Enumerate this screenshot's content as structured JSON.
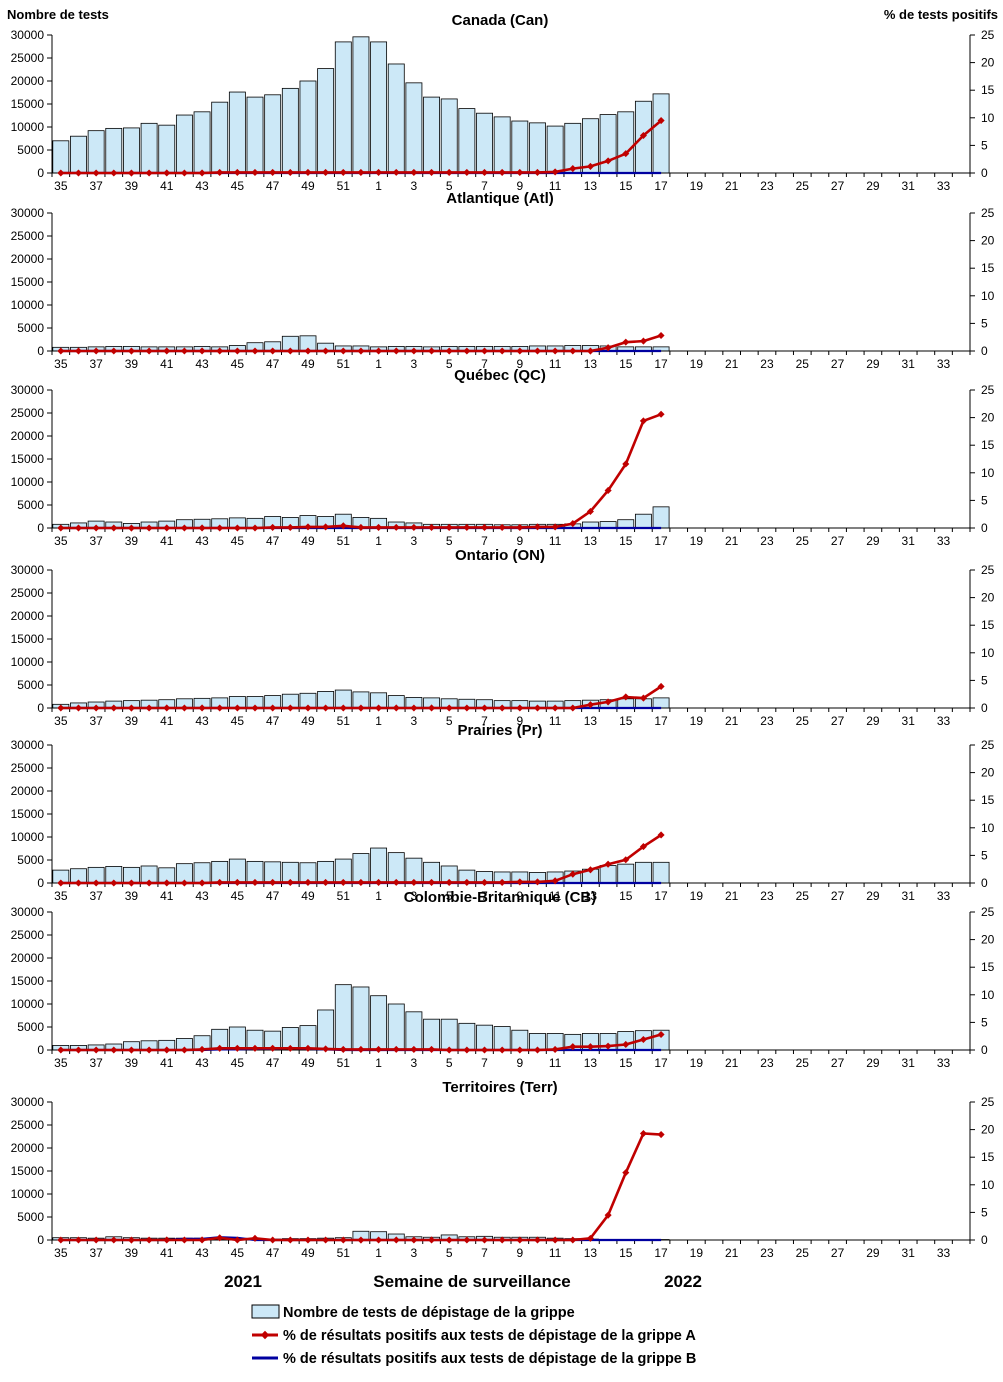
{
  "chart_data": {
    "type": "bar",
    "left_axis_title": "Nombre de tests",
    "right_axis_title": "% de tests positifs",
    "xlabel": "Semaine de surveillance",
    "year_labels": [
      "2021",
      "2022"
    ],
    "weeks": [
      35,
      36,
      37,
      38,
      39,
      40,
      41,
      42,
      43,
      44,
      45,
      46,
      47,
      48,
      49,
      50,
      51,
      52,
      1,
      2,
      3,
      4,
      5,
      6,
      7,
      8,
      9,
      10,
      11,
      12,
      13,
      14,
      15,
      16,
      17,
      18,
      19,
      20,
      21,
      22,
      23,
      24,
      25,
      26,
      27,
      28,
      29,
      30,
      31,
      32,
      33,
      34
    ],
    "x_tick_labels": [
      "35",
      "37",
      "39",
      "41",
      "43",
      "45",
      "47",
      "49",
      "51",
      "1",
      "3",
      "5",
      "7",
      "9",
      "11",
      "13",
      "15",
      "17",
      "19",
      "21",
      "23",
      "25",
      "27",
      "29",
      "31",
      "33"
    ],
    "ylim_left": [
      0,
      30000
    ],
    "yticks_left": [
      "0",
      "5000",
      "10000",
      "15000",
      "20000",
      "25000",
      "30000"
    ],
    "ylim_right": [
      0,
      25
    ],
    "yticks_right": [
      "0",
      "5",
      "10",
      "15",
      "20",
      "25"
    ],
    "legend": {
      "tests": "Nombre de tests de dépistage de la grippe",
      "flu_a": "% de résultats positifs aux tests de dépistage de la grippe A",
      "flu_b": "% de résultats positifs aux tests de dépistage de la grippe B"
    },
    "colors": {
      "bar_fill": "#cce8f7",
      "bar_stroke": "#000000",
      "flu_a": "#c00000",
      "flu_b": "#0000a0"
    },
    "panels": [
      {
        "title": "Canada (Can)",
        "tests": [
          7000,
          8000,
          9200,
          9700,
          9800,
          10800,
          10400,
          12600,
          13300,
          15400,
          17600,
          16500,
          17000,
          18400,
          20000,
          22700,
          28500,
          29600,
          28500,
          23700,
          19600,
          16500,
          16100,
          14000,
          13000,
          12200,
          11300,
          10900,
          10200,
          10800,
          11800,
          12700,
          13300,
          15600,
          17200
        ],
        "flu_a": [
          0,
          0,
          0,
          0,
          0,
          0,
          0,
          0,
          0,
          0.1,
          0.1,
          0.1,
          0.1,
          0.1,
          0.1,
          0.1,
          0.1,
          0.1,
          0.1,
          0.1,
          0.1,
          0.1,
          0.1,
          0.1,
          0.1,
          0.1,
          0.1,
          0.1,
          0.2,
          0.8,
          1.2,
          2.2,
          3.5,
          6.8,
          9.5
        ],
        "flu_b": [
          0,
          0,
          0,
          0,
          0,
          0,
          0,
          0,
          0,
          0,
          0,
          0,
          0,
          0,
          0,
          0,
          0,
          0,
          0,
          0,
          0,
          0,
          0,
          0,
          0,
          0,
          0,
          0,
          0,
          0,
          0,
          0,
          0,
          0,
          0
        ]
      },
      {
        "title": "Atlantique (Atl)",
        "tests": [
          800,
          800,
          900,
          1000,
          1000,
          900,
          900,
          900,
          1000,
          900,
          1200,
          1800,
          2000,
          3200,
          3300,
          1700,
          1100,
          1100,
          900,
          1000,
          1000,
          900,
          1000,
          1000,
          1000,
          1000,
          1000,
          1100,
          1100,
          1200,
          1200,
          1100,
          900,
          900,
          900
        ],
        "flu_a": [
          0,
          0,
          0,
          0,
          0,
          0,
          0,
          0,
          0,
          0,
          0,
          0,
          0,
          0,
          0,
          0,
          0,
          0,
          0,
          0,
          0,
          0,
          0,
          0,
          0,
          0,
          0,
          0,
          0,
          0,
          0,
          0.6,
          1.6,
          1.8,
          2.8
        ],
        "flu_b": [
          0,
          0,
          0,
          0,
          0,
          0,
          0,
          0,
          0,
          0,
          0,
          0,
          0,
          0,
          0,
          0,
          0,
          0,
          0,
          0,
          0,
          0,
          0,
          0,
          0,
          0,
          0,
          0,
          0,
          0,
          0,
          0,
          0,
          0,
          0
        ]
      },
      {
        "title": "Québec (QC)",
        "tests": [
          800,
          1100,
          1500,
          1300,
          1000,
          1300,
          1500,
          1800,
          1900,
          2000,
          2200,
          2100,
          2500,
          2300,
          2700,
          2500,
          3000,
          2300,
          2100,
          1300,
          1100,
          800,
          800,
          800,
          800,
          700,
          700,
          800,
          800,
          900,
          1300,
          1400,
          1800,
          3000,
          4600
        ],
        "flu_a": [
          0,
          0,
          0,
          0,
          0,
          0,
          0,
          0,
          0,
          0,
          0,
          0,
          0.1,
          0.1,
          0.2,
          0.2,
          0.4,
          0.1,
          0.1,
          0.1,
          0.1,
          0.1,
          0.1,
          0.1,
          0.1,
          0.1,
          0.1,
          0.2,
          0.2,
          0.8,
          3.0,
          6.8,
          11.6,
          19.4,
          20.6
        ],
        "flu_b": [
          0,
          0,
          0,
          0,
          0,
          0,
          0,
          0,
          0,
          0,
          0,
          0,
          0,
          0,
          0,
          0,
          0,
          0,
          0,
          0,
          0,
          0,
          0,
          0,
          0,
          0,
          0,
          0,
          0,
          0,
          0,
          0,
          0,
          0,
          0
        ]
      },
      {
        "title": "Ontario (ON)",
        "tests": [
          800,
          1100,
          1300,
          1500,
          1600,
          1700,
          1800,
          2000,
          2100,
          2200,
          2500,
          2500,
          2700,
          3000,
          3200,
          3600,
          3900,
          3500,
          3300,
          2700,
          2300,
          2200,
          2000,
          1900,
          1800,
          1600,
          1600,
          1500,
          1500,
          1600,
          1700,
          1800,
          2000,
          2000,
          2200
        ],
        "flu_a": [
          0,
          0,
          0,
          0,
          0,
          0,
          0,
          0,
          0,
          0,
          0,
          0,
          0,
          0,
          0,
          0,
          0,
          0,
          0,
          0,
          0,
          0,
          0,
          0,
          0,
          0,
          0,
          0,
          0,
          0,
          0.6,
          1.1,
          2.0,
          1.8,
          3.9
        ],
        "flu_b": [
          0,
          0,
          0,
          0,
          0,
          0,
          0,
          0,
          0,
          0,
          0,
          0,
          0,
          0,
          0,
          0,
          0,
          0,
          0,
          0,
          0,
          0,
          0,
          0,
          0,
          0,
          0,
          0,
          0,
          0,
          0,
          0,
          0,
          0,
          0
        ]
      },
      {
        "title": "Prairies (Pr)",
        "tests": [
          2800,
          3100,
          3400,
          3600,
          3400,
          3700,
          3300,
          4200,
          4400,
          4700,
          5200,
          4700,
          4600,
          4500,
          4400,
          4700,
          5200,
          6400,
          7600,
          6600,
          5400,
          4500,
          3700,
          2800,
          2500,
          2400,
          2400,
          2300,
          2400,
          2600,
          3000,
          3800,
          4100,
          4500,
          4500
        ],
        "flu_a": [
          0,
          0,
          0,
          0,
          0,
          0,
          0,
          0,
          0,
          0.1,
          0.1,
          0.1,
          0.1,
          0.1,
          0.1,
          0.1,
          0.1,
          0.1,
          0.1,
          0.1,
          0.1,
          0.1,
          0.1,
          0.1,
          0.1,
          0.1,
          0.2,
          0.2,
          0.4,
          1.6,
          2.4,
          3.4,
          4.2,
          6.6,
          8.7
        ],
        "flu_b": [
          0,
          0,
          0,
          0,
          0,
          0,
          0,
          0,
          0,
          0,
          0,
          0,
          0,
          0,
          0,
          0,
          0,
          0,
          0,
          0,
          0,
          0,
          0,
          0,
          0,
          0,
          0,
          0,
          0,
          0,
          0,
          0,
          0,
          0,
          0
        ]
      },
      {
        "title": "Colombie-Britannique (CB)",
        "tests": [
          1000,
          1000,
          1100,
          1300,
          1800,
          2000,
          2100,
          2500,
          3100,
          4500,
          5000,
          4300,
          4100,
          4900,
          5300,
          8700,
          14200,
          13700,
          11800,
          10000,
          8300,
          6700,
          6700,
          5800,
          5400,
          5100,
          4300,
          3600,
          3600,
          3400,
          3600,
          3600,
          4000,
          4200,
          4300
        ],
        "flu_a": [
          0,
          0,
          0,
          0,
          0,
          0,
          0,
          0,
          0.1,
          0.3,
          0.3,
          0.3,
          0.3,
          0.3,
          0.3,
          0.2,
          0.1,
          0.1,
          0.1,
          0.1,
          0.1,
          0.1,
          0,
          0,
          0,
          0,
          0,
          0,
          0.1,
          0.6,
          0.6,
          0.7,
          1.0,
          1.9,
          2.8
        ],
        "flu_b": [
          0,
          0,
          0,
          0,
          0,
          0,
          0,
          0,
          0,
          0.1,
          0.1,
          0.2,
          0.2,
          0.3,
          0.2,
          0.1,
          0,
          0,
          0,
          0,
          0,
          0,
          0,
          0,
          0,
          0,
          0,
          0,
          0,
          0,
          0,
          0,
          0,
          0,
          0
        ]
      },
      {
        "title": "Territoires (Terr)",
        "tests": [
          500,
          500,
          400,
          700,
          500,
          400,
          400,
          400,
          400,
          400,
          300,
          300,
          200,
          300,
          300,
          400,
          500,
          1900,
          1800,
          1300,
          700,
          600,
          1100,
          700,
          800,
          600,
          600,
          600,
          400,
          300,
          200,
          100,
          100,
          100,
          100
        ],
        "flu_a": [
          0,
          0,
          0,
          0,
          0,
          0,
          0,
          0,
          0,
          0.4,
          0,
          0.3,
          0,
          0,
          0,
          0,
          0,
          0,
          0,
          0,
          0,
          0,
          0,
          0,
          0,
          0,
          0,
          0,
          0,
          0,
          0.3,
          4.5,
          12.2,
          19.3,
          19.1
        ],
        "flu_b": [
          0,
          0,
          0,
          0,
          0,
          0,
          0,
          0.2,
          0.2,
          0.5,
          0.4,
          0,
          0,
          0,
          0,
          0,
          0,
          0,
          0,
          0,
          0,
          0,
          0,
          0,
          0,
          0,
          0,
          0,
          0,
          0,
          0,
          0,
          0,
          0,
          0
        ]
      }
    ]
  }
}
